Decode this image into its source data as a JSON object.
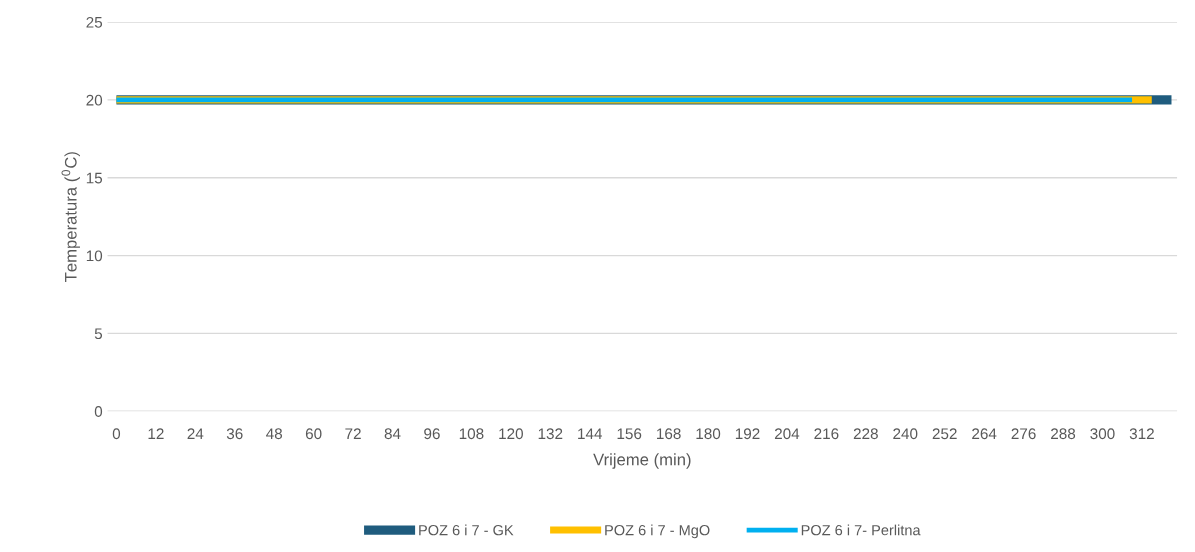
{
  "chart_data": {
    "type": "line",
    "xlabel": "Vrijeme (min)",
    "ylabel": "Temperatura ($^{0}$C)",
    "xlim": [
      -2.7,
      322.7
    ],
    "xticks": [
      0,
      12,
      24,
      36,
      48,
      60,
      72,
      84,
      96,
      108,
      120,
      132,
      144,
      156,
      168,
      180,
      192,
      204,
      216,
      228,
      240,
      252,
      264,
      276,
      288,
      300,
      312
    ],
    "ylim": [
      0,
      25
    ],
    "yticks": [
      0,
      5,
      10,
      15,
      20,
      25
    ],
    "grid": "y",
    "legend": "bottom",
    "marker": "none",
    "line_style": "solid",
    "series": [
      {
        "name": "POZ 6 i 7 - GK",
        "color": "#1f5c7e",
        "x": [
          0,
          321
        ],
        "values": [
          20,
          20
        ]
      },
      {
        "name": "POZ 6 i 7 - MgO",
        "color": "#ffc000",
        "x": [
          0,
          315
        ],
        "values": [
          20,
          20
        ]
      },
      {
        "name": "POZ 6 i 7- Perlitna",
        "color": "#00b0f0",
        "x": [
          0,
          309
        ],
        "values": [
          20,
          20
        ]
      }
    ]
  }
}
